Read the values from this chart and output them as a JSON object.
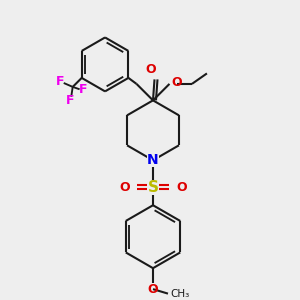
{
  "bg_color": "#eeeeee",
  "bond_color": "#1a1a1a",
  "N_color": "#0000ee",
  "O_color": "#dd0000",
  "S_color": "#bbbb00",
  "F_color": "#ee00ee",
  "lw": 1.5,
  "fig_w": 3.0,
  "fig_h": 3.0,
  "dpi": 100,
  "xlim": [
    0,
    10
  ],
  "ylim": [
    0,
    10
  ]
}
